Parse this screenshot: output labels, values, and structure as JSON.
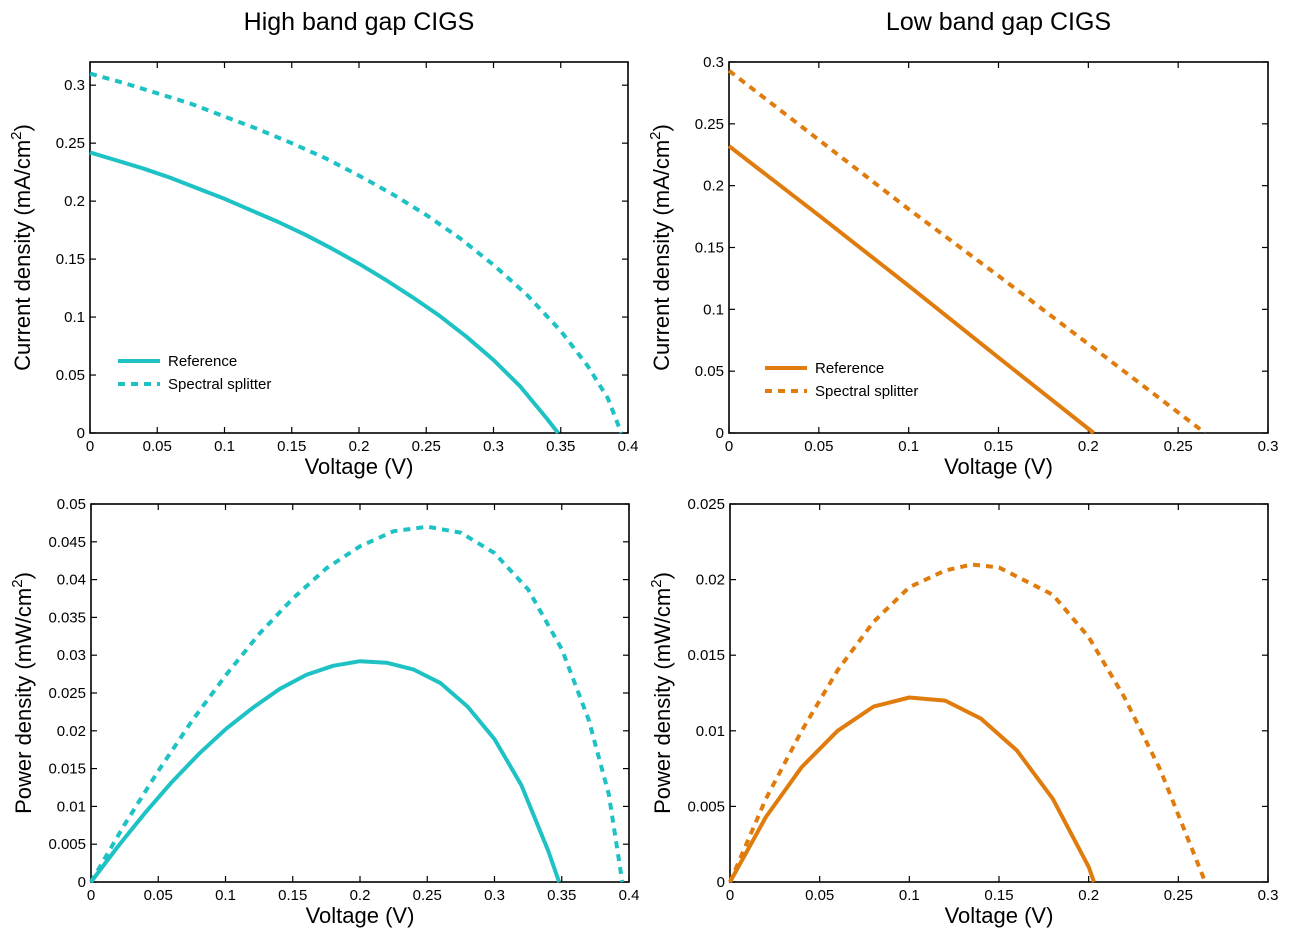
{
  "colors": {
    "high": "#1ec1c4",
    "low": "#e07c0d"
  },
  "chart_data": [
    {
      "type": "line",
      "title": "High band gap CIGS",
      "xlabel": "Voltage (V)",
      "ylabel": "Current density (mA/cm",
      "ylabel_sup": "2",
      "ylabel_close": ")",
      "xlim": [
        0,
        0.4
      ],
      "ylim": [
        0,
        0.32
      ],
      "xticks": [
        0,
        0.05,
        0.1,
        0.15,
        0.2,
        0.25,
        0.3,
        0.35,
        0.4
      ],
      "xtick_labels": [
        "0",
        "0.05",
        "0.1",
        "0.15",
        "0.2",
        "0.25",
        "0.3",
        "0.35",
        "0.4"
      ],
      "yticks": [
        0,
        0.05,
        0.1,
        0.15,
        0.2,
        0.25,
        0.3
      ],
      "ytick_labels": [
        "0",
        "0.05",
        "0.1",
        "0.15",
        "0.2",
        "0.25",
        "0.3"
      ],
      "legend": "bottom-left",
      "color_key": "high",
      "series": [
        {
          "name": "Reference",
          "style": "solid",
          "x": [
            0,
            0.02,
            0.04,
            0.06,
            0.08,
            0.1,
            0.12,
            0.14,
            0.16,
            0.18,
            0.2,
            0.22,
            0.24,
            0.26,
            0.28,
            0.3,
            0.32,
            0.34,
            0.348
          ],
          "y": [
            0.242,
            0.235,
            0.228,
            0.22,
            0.211,
            0.202,
            0.192,
            0.182,
            0.171,
            0.159,
            0.146,
            0.132,
            0.117,
            0.101,
            0.083,
            0.063,
            0.04,
            0.012,
            0
          ]
        },
        {
          "name": "Spectral splitter",
          "style": "dashed",
          "x": [
            0,
            0.025,
            0.05,
            0.075,
            0.1,
            0.125,
            0.15,
            0.175,
            0.2,
            0.225,
            0.25,
            0.275,
            0.3,
            0.325,
            0.35,
            0.37,
            0.385,
            0.395
          ],
          "y": [
            0.31,
            0.302,
            0.293,
            0.284,
            0.273,
            0.262,
            0.25,
            0.237,
            0.222,
            0.206,
            0.188,
            0.168,
            0.145,
            0.119,
            0.088,
            0.058,
            0.03,
            0
          ]
        }
      ]
    },
    {
      "type": "line",
      "title": "Low band gap CIGS",
      "xlabel": "Voltage (V)",
      "ylabel": "Current density (mA/cm",
      "ylabel_sup": "2",
      "ylabel_close": ")",
      "xlim": [
        0,
        0.3
      ],
      "ylim": [
        0,
        0.3
      ],
      "xticks": [
        0,
        0.05,
        0.1,
        0.15,
        0.2,
        0.25,
        0.3
      ],
      "xtick_labels": [
        "0",
        "0.05",
        "0.1",
        "0.15",
        "0.2",
        "0.25",
        "0.3"
      ],
      "yticks": [
        0,
        0.05,
        0.1,
        0.15,
        0.2,
        0.25,
        0.3
      ],
      "ytick_labels": [
        "0",
        "0.05",
        "0.1",
        "0.15",
        "0.2",
        "0.25",
        "0.3"
      ],
      "legend": "bottom-left",
      "color_key": "low",
      "series": [
        {
          "name": "Reference",
          "style": "solid",
          "x": [
            0,
            0.05,
            0.1,
            0.15,
            0.203
          ],
          "y": [
            0.232,
            0.176,
            0.119,
            0.061,
            0
          ]
        },
        {
          "name": "Spectral splitter",
          "style": "dashed",
          "x": [
            0,
            0.05,
            0.1,
            0.15,
            0.2,
            0.265
          ],
          "y": [
            0.293,
            0.237,
            0.181,
            0.127,
            0.072,
            0
          ]
        }
      ]
    },
    {
      "type": "line",
      "title": "",
      "xlabel": "Voltage (V)",
      "ylabel": "Power density (mW/cm",
      "ylabel_sup": "2",
      "ylabel_close": ")",
      "xlim": [
        0,
        0.4
      ],
      "ylim": [
        0,
        0.05
      ],
      "xticks": [
        0,
        0.05,
        0.1,
        0.15,
        0.2,
        0.25,
        0.3,
        0.35,
        0.4
      ],
      "xtick_labels": [
        "0",
        "0.05",
        "0.1",
        "0.15",
        "0.2",
        "0.25",
        "0.3",
        "0.35",
        "0.4"
      ],
      "yticks": [
        0,
        0.005,
        0.01,
        0.015,
        0.02,
        0.025,
        0.03,
        0.035,
        0.04,
        0.045,
        0.05
      ],
      "ytick_labels": [
        "0",
        "0.005",
        "0.01",
        "0.015",
        "0.02",
        "0.025",
        "0.03",
        "0.035",
        "0.04",
        "0.045",
        "0.05"
      ],
      "color_key": "high",
      "series": [
        {
          "style": "solid",
          "x": [
            0,
            0.02,
            0.04,
            0.06,
            0.08,
            0.1,
            0.12,
            0.14,
            0.16,
            0.18,
            0.2,
            0.22,
            0.24,
            0.26,
            0.28,
            0.3,
            0.32,
            0.34,
            0.348
          ],
          "y": [
            0,
            0.0047,
            0.0091,
            0.0132,
            0.0169,
            0.0202,
            0.023,
            0.0255,
            0.0274,
            0.0286,
            0.0292,
            0.029,
            0.0281,
            0.0263,
            0.0232,
            0.0189,
            0.0128,
            0.0041,
            0
          ]
        },
        {
          "style": "dashed",
          "x": [
            0,
            0.025,
            0.05,
            0.075,
            0.1,
            0.125,
            0.15,
            0.175,
            0.2,
            0.225,
            0.25,
            0.275,
            0.3,
            0.325,
            0.35,
            0.37,
            0.385,
            0.395
          ],
          "y": [
            0,
            0.0076,
            0.0147,
            0.0213,
            0.0273,
            0.0328,
            0.0375,
            0.0415,
            0.0444,
            0.0464,
            0.047,
            0.0462,
            0.0435,
            0.0387,
            0.0308,
            0.0215,
            0.0116,
            0
          ]
        }
      ]
    },
    {
      "type": "line",
      "title": "",
      "xlabel": "Voltage (V)",
      "ylabel": "Power density (mW/cm",
      "ylabel_sup": "2",
      "ylabel_close": ")",
      "xlim": [
        0,
        0.3
      ],
      "ylim": [
        0,
        0.025
      ],
      "xticks": [
        0,
        0.05,
        0.1,
        0.15,
        0.2,
        0.25,
        0.3
      ],
      "xtick_labels": [
        "0",
        "0.05",
        "0.1",
        "0.15",
        "0.2",
        "0.25",
        "0.3"
      ],
      "yticks": [
        0,
        0.005,
        0.01,
        0.015,
        0.02,
        0.025
      ],
      "ytick_labels": [
        "0",
        "0.005",
        "0.01",
        "0.015",
        "0.02",
        "0.025"
      ],
      "color_key": "low",
      "series": [
        {
          "style": "solid",
          "x": [
            0,
            0.02,
            0.04,
            0.06,
            0.08,
            0.1,
            0.12,
            0.14,
            0.16,
            0.18,
            0.2,
            0.203
          ],
          "y": [
            0,
            0.0043,
            0.0076,
            0.01,
            0.0116,
            0.0122,
            0.012,
            0.0108,
            0.0087,
            0.0055,
            0.001,
            0
          ]
        },
        {
          "style": "dashed",
          "x": [
            0,
            0.02,
            0.04,
            0.06,
            0.08,
            0.1,
            0.12,
            0.135,
            0.15,
            0.18,
            0.2,
            0.22,
            0.24,
            0.265
          ],
          "y": [
            0,
            0.0055,
            0.01,
            0.014,
            0.0172,
            0.0195,
            0.0206,
            0.021,
            0.0208,
            0.019,
            0.0162,
            0.0122,
            0.0074,
            0
          ]
        }
      ]
    }
  ]
}
